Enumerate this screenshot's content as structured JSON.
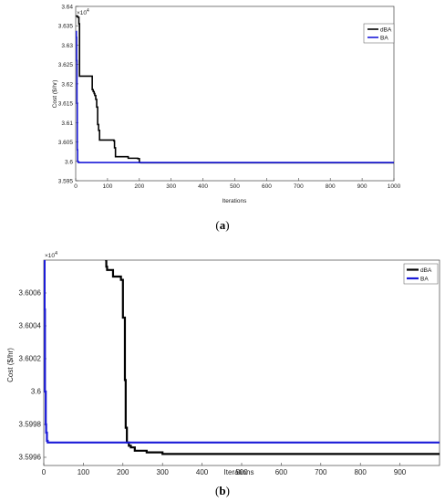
{
  "chart_data": [
    {
      "panel": "(a)",
      "panel_letter": "a",
      "type": "line",
      "xlabel": "Iterations",
      "ylabel": "Cost ($/hr)",
      "multiplier": "×10",
      "multiplier_exp": "4",
      "xlim": [
        0,
        1000
      ],
      "ylim": [
        3.595,
        3.64
      ],
      "xticks": [
        "0",
        "100",
        "200",
        "300",
        "400",
        "500",
        "600",
        "700",
        "800",
        "900",
        "1000"
      ],
      "yticks": [
        "3.595",
        "3.6",
        "3.605",
        "3.61",
        "3.615",
        "3.62",
        "3.625",
        "3.63",
        "3.635",
        "3.64"
      ],
      "grid": false,
      "legend_position": "top-right",
      "series": [
        {
          "name": "dBA",
          "color": "#000000",
          "x": [
            0,
            6,
            10,
            12,
            18,
            20,
            50,
            52,
            55,
            58,
            60,
            63,
            66,
            69,
            72,
            75,
            80,
            90,
            120,
            122,
            125,
            140,
            165,
            195,
            200,
            202,
            205,
            210,
            1000
          ],
          "y": [
            3.6375,
            3.6372,
            3.6355,
            3.622,
            3.622,
            3.622,
            3.622,
            3.6185,
            3.618,
            3.6175,
            3.617,
            3.616,
            3.614,
            3.6095,
            3.608,
            3.6055,
            3.6055,
            3.6055,
            3.6053,
            3.6035,
            3.6012,
            3.6012,
            3.6008,
            3.6007,
            3.5997,
            3.59965,
            3.59964,
            3.59963,
            3.59962
          ]
        },
        {
          "name": "BA",
          "color": "#1a1ad8",
          "x": [
            0,
            1,
            2,
            3,
            4,
            5,
            6,
            8,
            10,
            20,
            1000
          ],
          "y": [
            3.6335,
            3.6335,
            3.632,
            3.626,
            3.615,
            3.603,
            3.6,
            3.59975,
            3.5997,
            3.59969,
            3.59969
          ]
        }
      ]
    },
    {
      "panel": "(b)",
      "panel_letter": "b",
      "type": "line",
      "xlabel": "Iterations",
      "ylabel": "Cost ($/hr)",
      "multiplier": "×10",
      "multiplier_exp": "4",
      "xlim": [
        0,
        1000
      ],
      "ylim": [
        3.59955,
        3.6008
      ],
      "xticks": [
        "0",
        "100",
        "200",
        "300",
        "400",
        "500",
        "600",
        "700",
        "800",
        "900"
      ],
      "yticks": [
        "3.5996",
        "3.5998",
        "3.6",
        "3.6002",
        "3.6004",
        "3.6006"
      ],
      "grid": false,
      "legend_position": "top-right",
      "series": [
        {
          "name": "dBA",
          "color": "#000000",
          "x": [
            155,
            158,
            160,
            170,
            175,
            185,
            195,
            200,
            205,
            207,
            210,
            215,
            220,
            225,
            230,
            240,
            260,
            300,
            400,
            1000
          ],
          "y": [
            3.6008,
            3.60076,
            3.60074,
            3.60074,
            3.6007,
            3.6007,
            3.60068,
            3.60045,
            3.60007,
            3.59978,
            3.59969,
            3.59967,
            3.59966,
            3.59966,
            3.59964,
            3.59964,
            3.59963,
            3.59962,
            3.59962,
            3.59962
          ]
        },
        {
          "name": "BA",
          "color": "#1a1ad8",
          "x": [
            0,
            1,
            2,
            3,
            5,
            6,
            8,
            10,
            20,
            200,
            1000
          ],
          "y": [
            3.6008,
            3.6008,
            3.6005,
            3.6,
            3.5998,
            3.59975,
            3.5997,
            3.59969,
            3.59969,
            3.59969,
            3.59969
          ]
        }
      ]
    }
  ]
}
